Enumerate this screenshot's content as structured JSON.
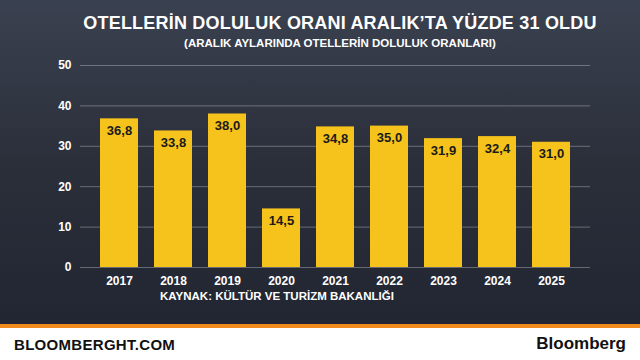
{
  "chart_data": {
    "type": "bar",
    "title": "OTELLERİN DOLULUK ORANI ARALIK’TA YÜZDE 31 OLDU",
    "subtitle": "(ARALIK AYLARINDA OTELLERİN DOLULUK ORANLARI)",
    "source": "KAYNAK: KÜLTÜR VE TURİZM BAKANLIĞI",
    "footer": [
      "BLOOMBERGHT.COM",
      "Bloomberg"
    ],
    "categories": [
      "2017",
      "2018",
      "2019",
      "2020",
      "2021",
      "2022",
      "2023",
      "2024",
      "2025"
    ],
    "values": [
      36.8,
      33.8,
      38.0,
      14.5,
      34.8,
      35.0,
      31.9,
      32.4,
      31.0
    ],
    "value_labels": [
      "36,8",
      "33,8",
      "38,0",
      "14,5",
      "34,8",
      "35,0",
      "31,9",
      "32,4",
      "31,0"
    ],
    "color": "#f6c21c",
    "ylim": [
      0,
      50
    ],
    "yticks": [
      0,
      10,
      20,
      30,
      40,
      50
    ],
    "grid": true,
    "data_labels": true
  }
}
